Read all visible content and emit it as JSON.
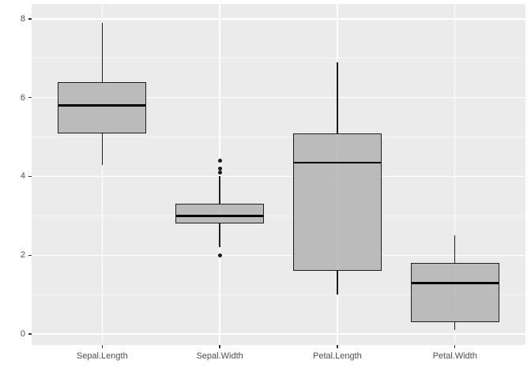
{
  "chart_data": {
    "type": "boxplot",
    "title": "",
    "xlabel": "",
    "ylabel": "",
    "legend_position": "none",
    "grid": "white major and minor horizontal gridlines, white vertical major gridlines at category centers, on grey panel",
    "categories": [
      "Sepal.Length",
      "Sepal.Width",
      "Petal.Length",
      "Petal.Width"
    ],
    "series": [
      {
        "name": "Sepal.Length",
        "whisker_low": 4.3,
        "q1": 5.1,
        "median": 5.8,
        "q3": 6.4,
        "whisker_high": 7.9,
        "outliers": []
      },
      {
        "name": "Sepal.Width",
        "whisker_low": 2.2,
        "q1": 2.8,
        "median": 3.0,
        "q3": 3.3,
        "whisker_high": 4.0,
        "outliers": [
          2.0,
          4.1,
          4.2,
          4.4
        ]
      },
      {
        "name": "Petal.Length",
        "whisker_low": 1.0,
        "q1": 1.6,
        "median": 4.35,
        "q3": 5.1,
        "whisker_high": 6.9,
        "outliers": []
      },
      {
        "name": "Petal.Width",
        "whisker_low": 0.1,
        "q1": 0.3,
        "median": 1.3,
        "q3": 1.8,
        "whisker_high": 2.5,
        "outliers": []
      }
    ],
    "y_axis": {
      "tick_labels": [
        "0",
        "2",
        "4",
        "6",
        "8"
      ],
      "tick_values": [
        0,
        2,
        4,
        6,
        8
      ],
      "minor_values": [
        1,
        3,
        5,
        7
      ],
      "range": [
        -0.28,
        8.38
      ]
    },
    "style": {
      "outer_bg": "#FFFFFF",
      "panel_bg": "#EBEBEB",
      "grid_major": "#FFFFFF",
      "grid_minor": "rgba(255,255,255,0.6)",
      "box_fill": "rgba(176,176,176,0.82)",
      "box_border": "#1E1E1E",
      "median_color": "#000000",
      "whisker_color": "#1E1E1E",
      "outlier_color": "#1A1A1A",
      "axis_text_color": "#4D4D4D",
      "tick_mark_color": "#333333"
    }
  }
}
